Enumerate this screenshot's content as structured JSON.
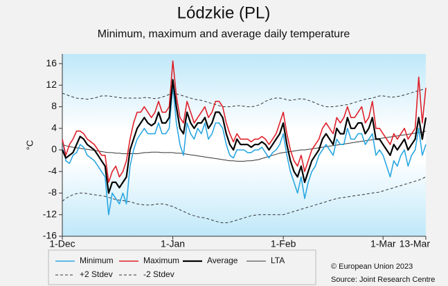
{
  "chart_data": {
    "type": "line",
    "title": "Lódzkie (PL)",
    "subtitle": "Minimum, maximum and average daily temperature",
    "y_label": "°C",
    "copyright": "© European Union 2023",
    "source": "Source: Joint Research Centre",
    "grid": false,
    "ylim": [
      -16,
      17.8
    ],
    "yticks": [
      -16,
      -12,
      -8,
      -4,
      0,
      4,
      8,
      12,
      16
    ],
    "categories": [
      "1-Dec",
      null,
      null,
      null,
      null,
      null,
      null,
      null,
      null,
      null,
      null,
      null,
      null,
      null,
      null,
      null,
      null,
      null,
      null,
      null,
      null,
      null,
      null,
      null,
      null,
      null,
      null,
      null,
      null,
      null,
      null,
      "1-Jan",
      null,
      null,
      null,
      null,
      null,
      null,
      null,
      null,
      null,
      null,
      null,
      null,
      null,
      null,
      null,
      null,
      null,
      null,
      null,
      null,
      null,
      null,
      null,
      null,
      null,
      null,
      null,
      null,
      null,
      null,
      "1-Feb",
      null,
      null,
      null,
      null,
      null,
      null,
      null,
      null,
      null,
      null,
      null,
      null,
      null,
      null,
      null,
      null,
      null,
      null,
      null,
      null,
      null,
      null,
      null,
      null,
      null,
      null,
      null,
      "1-Mar",
      null,
      null,
      null,
      null,
      null,
      null,
      null,
      null,
      null,
      null,
      null,
      "13-Mar"
    ],
    "series": [
      {
        "name": "Minimum",
        "color": "#2aa7e1",
        "width": 1.6,
        "dash": false,
        "values": [
          2,
          -2,
          -2.5,
          -1,
          -0.5,
          1,
          0.5,
          -1,
          -1.5,
          -2,
          -3,
          -4,
          -5,
          -12,
          -8,
          -9,
          -10,
          -8,
          -10,
          -3,
          0,
          2,
          3,
          4,
          3,
          3,
          3,
          5,
          3,
          3,
          4,
          12,
          5,
          1,
          -1,
          5,
          3,
          2,
          4,
          3,
          5,
          2,
          3,
          5,
          5,
          4,
          1,
          -1,
          -1.5,
          0,
          0,
          0,
          -0.5,
          -0.5,
          0,
          0,
          0.5,
          -0.5,
          -1.5,
          -0.5,
          0,
          1,
          3,
          -1,
          -4,
          -6,
          -8,
          -5,
          -9,
          -6,
          -4,
          -3,
          -1,
          0,
          1,
          0,
          -1,
          2,
          1,
          1,
          4,
          2,
          2,
          3,
          3,
          1,
          2,
          3,
          -1,
          0,
          -1,
          -3,
          -5,
          -2,
          -3,
          -1,
          0,
          -3,
          -1,
          0,
          4,
          -1,
          1
        ]
      },
      {
        "name": "Maximum",
        "color": "#e0202a",
        "width": 1.6,
        "dash": false,
        "values": [
          2,
          -1,
          1,
          2,
          3.5,
          3.5,
          3,
          2,
          1.5,
          1,
          0,
          -1,
          -1,
          -6,
          -4,
          -3,
          -5,
          -4,
          -2,
          2,
          5,
          7,
          7,
          8,
          7,
          6,
          7,
          9,
          7,
          7,
          8,
          16.5,
          10,
          6,
          5,
          9,
          7,
          5,
          6,
          7,
          8,
          6,
          7,
          9,
          9,
          8,
          5,
          3,
          1.5,
          3,
          2,
          2,
          2,
          1.5,
          2,
          2,
          2.5,
          2,
          1,
          2,
          3,
          5,
          7,
          3,
          0,
          -2,
          -3,
          -1,
          -4,
          -2,
          0,
          1,
          2,
          4,
          5,
          4,
          3,
          6,
          5,
          6,
          8,
          6,
          6,
          7,
          8,
          5,
          6,
          9,
          4,
          4,
          3,
          2,
          1,
          3,
          2,
          3,
          4,
          2,
          3,
          4,
          13.5,
          5,
          11.5
        ]
      },
      {
        "name": "Average",
        "color": "#000000",
        "width": 2.2,
        "dash": false,
        "values": [
          0,
          -1.5,
          -1,
          -0.5,
          1,
          2.5,
          2,
          1,
          0.5,
          0,
          -1,
          -2,
          -3,
          -8,
          -6,
          -6,
          -7,
          -6,
          -5,
          0,
          2,
          4,
          5,
          6,
          5,
          4.5,
          5,
          7,
          5,
          5,
          6,
          13,
          8,
          4,
          3,
          7,
          5,
          4,
          5,
          5,
          6,
          4,
          5,
          7,
          7,
          6,
          3,
          1,
          0,
          2,
          1,
          1,
          1,
          0.5,
          1,
          1,
          1.5,
          1,
          0,
          1,
          2,
          3,
          5,
          1,
          -2,
          -4,
          -5,
          -3,
          -6,
          -4,
          -2,
          -1,
          0,
          2,
          3,
          2,
          1,
          4,
          3,
          3,
          6,
          4,
          4,
          5,
          5,
          3,
          4,
          6,
          2,
          2,
          1,
          0,
          -1,
          1,
          0,
          1,
          2,
          0,
          1,
          2,
          6,
          2,
          6
        ]
      },
      {
        "name": "LTA",
        "color": "#333333",
        "width": 1,
        "dash": false,
        "values": [
          1,
          0.8,
          0.6,
          0.5,
          0.4,
          0.3,
          0.2,
          0.1,
          0,
          -0.1,
          -0.2,
          -0.3,
          -0.4,
          -0.5,
          -0.5,
          -0.6,
          -0.6,
          -0.7,
          -0.7,
          -0.7,
          -0.7,
          -0.7,
          -0.6,
          -0.5,
          -0.5,
          -0.4,
          -0.4,
          -0.4,
          -0.5,
          -0.5,
          -0.5,
          -0.5,
          -0.6,
          -0.6,
          -0.7,
          -0.8,
          -0.9,
          -1,
          -1.1,
          -1.2,
          -1.3,
          -1.4,
          -1.5,
          -1.6,
          -1.7,
          -1.8,
          -1.9,
          -2,
          -2,
          -2.1,
          -2.1,
          -2.1,
          -2,
          -2,
          -1.9,
          -1.8,
          -1.6,
          -1.4,
          -1.2,
          -1,
          -0.8,
          -0.6,
          -0.5,
          -0.4,
          -0.3,
          -0.2,
          -0.1,
          0,
          0,
          0.1,
          0.2,
          0.3,
          0.4,
          0.5,
          0.6,
          0.7,
          0.8,
          0.9,
          1,
          1.1,
          1.2,
          1.3,
          1.4,
          1.5,
          1.6,
          1.7,
          1.8,
          1.9,
          2,
          2.1,
          2.2,
          2.3,
          2.4,
          2.5,
          2.6,
          2.7,
          2.8,
          2.9,
          3,
          3.1,
          3.2,
          3.3,
          3.5
        ]
      },
      {
        "name": "+2 Stdev",
        "color": "#333333",
        "width": 1,
        "dash": true,
        "values": [
          10.5,
          10.3,
          10,
          9.8,
          9.6,
          9.5,
          9.5,
          9.4,
          9.5,
          9.6,
          9.8,
          10,
          10,
          10,
          9.9,
          9.8,
          9.7,
          9.6,
          9.6,
          9.6,
          9.6,
          9.6,
          9.6,
          9.7,
          9.7,
          9.6,
          9.5,
          9.6,
          9.8,
          10,
          10.3,
          10.5,
          10.4,
          10.2,
          10,
          9.8,
          9.6,
          9.4,
          9.3,
          9.2,
          9,
          8.8,
          8.6,
          8.4,
          8.2,
          8,
          8,
          8,
          8.1,
          8.2,
          8.2,
          8.1,
          8,
          8,
          8.1,
          8.3,
          8.6,
          9,
          9.3,
          9.5,
          9.6,
          9.6,
          9.5,
          9.3,
          9.2,
          9.3,
          9.4,
          9.5,
          9.4,
          9.2,
          9,
          8.7,
          8.4,
          8.2,
          8,
          8,
          8,
          8.1,
          8.2,
          8.3,
          8.4,
          8.6,
          8.8,
          9,
          9.2,
          9.4,
          9.5,
          9.6,
          9.8,
          10,
          10,
          9.9,
          9.8,
          9.8,
          9.9,
          10,
          10.2,
          10.4,
          10.6,
          10.8,
          11,
          11.2,
          11.2
        ]
      },
      {
        "name": "-2 Stdev",
        "color": "#333333",
        "width": 1,
        "dash": true,
        "values": [
          -9.5,
          -9,
          -8.6,
          -8.3,
          -8.1,
          -8,
          -8,
          -8.1,
          -8.2,
          -8.3,
          -8.4,
          -8.5,
          -8.6,
          -8.8,
          -9,
          -9.2,
          -9.3,
          -9.4,
          -9.5,
          -9.6,
          -9.8,
          -10,
          -10.1,
          -10.2,
          -10.2,
          -10.2,
          -10.1,
          -10,
          -10,
          -10.1,
          -10.3,
          -10.5,
          -10.8,
          -11.1,
          -11.4,
          -11.7,
          -12,
          -12.2,
          -12.4,
          -12.5,
          -12.6,
          -12.8,
          -13,
          -13.2,
          -13.4,
          -13.5,
          -13.5,
          -13.4,
          -13.2,
          -13,
          -12.8,
          -12.6,
          -12.4,
          -12.2,
          -12.1,
          -12,
          -12,
          -12,
          -12,
          -12,
          -12,
          -12,
          -12,
          -11.8,
          -11.6,
          -11.4,
          -11.2,
          -11,
          -10.8,
          -10.6,
          -10.4,
          -10.2,
          -10,
          -9.8,
          -9.6,
          -9.4,
          -9.2,
          -9,
          -8.9,
          -8.8,
          -8.7,
          -8.6,
          -8.5,
          -8.4,
          -8.3,
          -8.2,
          -8.1,
          -8,
          -7.9,
          -7.8,
          -7.6,
          -7.4,
          -7.2,
          -7,
          -6.8,
          -6.6,
          -6.4,
          -6.2,
          -6,
          -5.8,
          -5.6,
          -5.3,
          -5
        ]
      }
    ]
  }
}
